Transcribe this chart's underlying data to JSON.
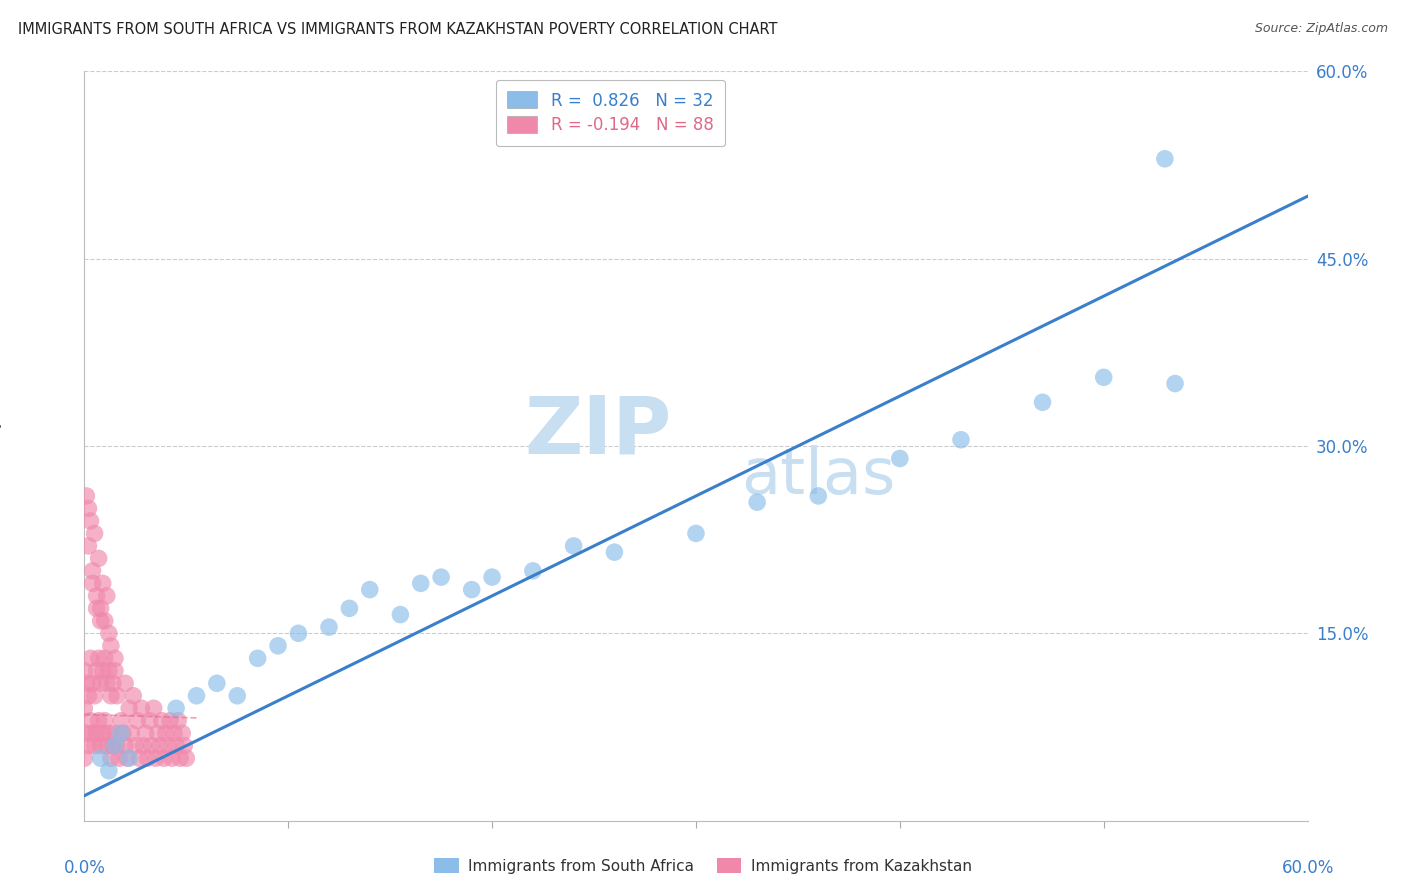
{
  "title": "IMMIGRANTS FROM SOUTH AFRICA VS IMMIGRANTS FROM KAZAKHSTAN POVERTY CORRELATION CHART",
  "source": "Source: ZipAtlas.com",
  "ylabel": "Poverty",
  "xlim": [
    0.0,
    0.6
  ],
  "ylim": [
    0.0,
    0.6
  ],
  "color_blue": "#8BBDE8",
  "color_pink": "#F088AA",
  "trendline_blue_color": "#3A7FCC",
  "trendline_pink_color": "#E06888",
  "legend_blue_text": "R =  0.826   N = 32",
  "legend_pink_text": "R = -0.194   N = 88",
  "bottom_legend_blue": "Immigrants from South Africa",
  "bottom_legend_pink": "Immigrants from Kazakhstan",
  "blue_intercept": 0.02,
  "blue_slope": 0.8,
  "pink_intercept": 0.085,
  "pink_slope": -0.05,
  "sa_x": [
    0.008,
    0.012,
    0.015,
    0.018,
    0.022,
    0.045,
    0.055,
    0.065,
    0.075,
    0.085,
    0.095,
    0.105,
    0.12,
    0.13,
    0.14,
    0.155,
    0.165,
    0.175,
    0.19,
    0.2,
    0.22,
    0.24,
    0.26,
    0.3,
    0.33,
    0.36,
    0.4,
    0.43,
    0.47,
    0.5,
    0.53,
    0.535
  ],
  "sa_y": [
    0.05,
    0.04,
    0.06,
    0.07,
    0.05,
    0.09,
    0.1,
    0.11,
    0.1,
    0.13,
    0.14,
    0.15,
    0.155,
    0.17,
    0.185,
    0.165,
    0.19,
    0.195,
    0.185,
    0.195,
    0.2,
    0.22,
    0.215,
    0.23,
    0.255,
    0.26,
    0.29,
    0.305,
    0.335,
    0.355,
    0.53,
    0.35
  ],
  "kz_x": [
    0.0,
    0.0,
    0.0,
    0.001,
    0.001,
    0.002,
    0.002,
    0.003,
    0.003,
    0.004,
    0.004,
    0.005,
    0.005,
    0.006,
    0.006,
    0.007,
    0.007,
    0.008,
    0.008,
    0.009,
    0.009,
    0.01,
    0.01,
    0.011,
    0.011,
    0.012,
    0.012,
    0.013,
    0.013,
    0.014,
    0.014,
    0.015,
    0.015,
    0.016,
    0.016,
    0.017,
    0.018,
    0.019,
    0.02,
    0.02,
    0.021,
    0.022,
    0.023,
    0.024,
    0.025,
    0.026,
    0.027,
    0.028,
    0.029,
    0.03,
    0.031,
    0.032,
    0.033,
    0.034,
    0.035,
    0.036,
    0.037,
    0.038,
    0.039,
    0.04,
    0.041,
    0.042,
    0.043,
    0.044,
    0.045,
    0.046,
    0.047,
    0.048,
    0.049,
    0.05,
    0.002,
    0.004,
    0.006,
    0.008,
    0.01,
    0.012,
    0.001,
    0.003,
    0.005,
    0.007,
    0.009,
    0.011,
    0.013,
    0.015,
    0.002,
    0.004,
    0.006,
    0.008
  ],
  "kz_y": [
    0.05,
    0.09,
    0.12,
    0.07,
    0.11,
    0.06,
    0.1,
    0.08,
    0.13,
    0.07,
    0.11,
    0.06,
    0.1,
    0.07,
    0.12,
    0.08,
    0.13,
    0.06,
    0.11,
    0.07,
    0.12,
    0.08,
    0.13,
    0.06,
    0.11,
    0.07,
    0.12,
    0.05,
    0.1,
    0.06,
    0.11,
    0.07,
    0.12,
    0.06,
    0.1,
    0.05,
    0.08,
    0.07,
    0.06,
    0.11,
    0.05,
    0.09,
    0.07,
    0.1,
    0.06,
    0.08,
    0.05,
    0.09,
    0.06,
    0.07,
    0.05,
    0.08,
    0.06,
    0.09,
    0.05,
    0.07,
    0.06,
    0.08,
    0.05,
    0.07,
    0.06,
    0.08,
    0.05,
    0.07,
    0.06,
    0.08,
    0.05,
    0.07,
    0.06,
    0.05,
    0.22,
    0.2,
    0.18,
    0.17,
    0.16,
    0.15,
    0.26,
    0.24,
    0.23,
    0.21,
    0.19,
    0.18,
    0.14,
    0.13,
    0.25,
    0.19,
    0.17,
    0.16
  ]
}
